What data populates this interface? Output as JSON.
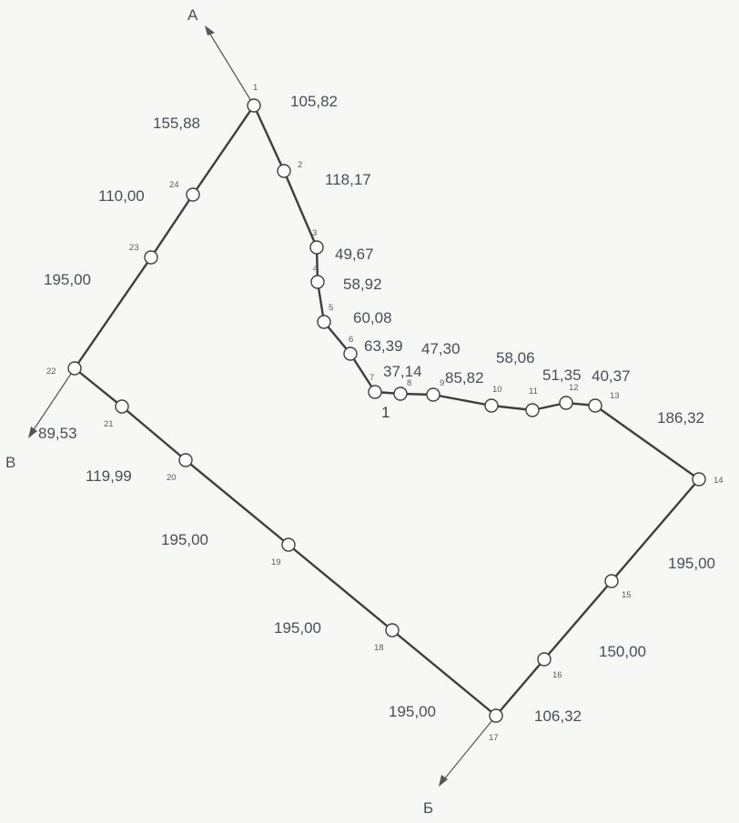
{
  "directions": {
    "a": "А",
    "b": "Б",
    "v": "В"
  },
  "parcel_number": "1",
  "point_numbers": [
    "1",
    "2",
    "3",
    "4",
    "5",
    "6",
    "7",
    "8",
    "9",
    "10",
    "11",
    "12",
    "13",
    "14",
    "15",
    "16",
    "17",
    "18",
    "19",
    "20",
    "21",
    "22",
    "23",
    "24"
  ],
  "distances": {
    "d1_2": "105,82",
    "d2_3": "118,17",
    "d3_4": "49,67",
    "d4_5": "58,92",
    "d5_6": "60,08",
    "d6_7": "63,39",
    "d7_8": "37,14",
    "d8_9": "47,30",
    "d9_10": "85,82",
    "d10_11": "58,06",
    "d11_12": "51,35",
    "d12_13": "40,37",
    "d13_14": "186,32",
    "d14_15": "195,00",
    "d15_16": "150,00",
    "d16_17": "106,32",
    "d17_18": "195,00",
    "d18_19": "195,00",
    "d19_20": "195,00",
    "d20_21": "119,99",
    "d21_22": "89,53",
    "d22_23": "195,00",
    "d23_24": "110,00",
    "d24_1": "155,88"
  },
  "colors": {
    "line": "#3e3e42",
    "text": "#4a4e5a",
    "background": "#f7f7f5"
  }
}
